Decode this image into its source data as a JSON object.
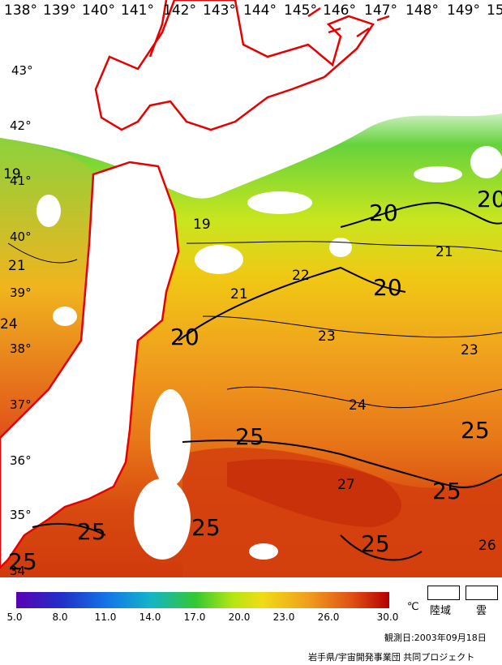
{
  "map": {
    "longitude_labels": [
      "138°",
      "139°",
      "140°",
      "141°",
      "142°",
      "143°",
      "144°",
      "145°",
      "146°",
      "147°",
      "148°",
      "149°",
      "15"
    ],
    "latitude_labels": [
      "43°",
      "42°",
      "41°",
      "40°",
      "39°",
      "38°",
      "37°",
      "36°",
      "35°",
      "34"
    ],
    "isotherm_labels": [
      "19",
      "21",
      "24",
      "19",
      "21",
      "20",
      "22",
      "23",
      "23",
      "20",
      "21",
      "20",
      "20",
      "24",
      "25",
      "27",
      "25",
      "25",
      "25",
      "25",
      "26"
    ]
  },
  "legend": {
    "ticks": [
      "5.0",
      "8.0",
      "11.0",
      "14.0",
      "17.0",
      "20.0",
      "23.0",
      "26.0",
      "30.0"
    ],
    "unit": "℃",
    "land_label": "陸域",
    "cloud_label": "雲",
    "observation_date": "観測日:2003年09月18日",
    "credit": "岩手県/宇宙開発事業団 共同プロジェクト",
    "colors": {
      "min": "#5a00b4",
      "blue": "#1450dc",
      "green": "#32c832",
      "yellow": "#f0dc14",
      "orange": "#f08c1e",
      "max": "#b40000",
      "coast": "#e60000"
    }
  }
}
